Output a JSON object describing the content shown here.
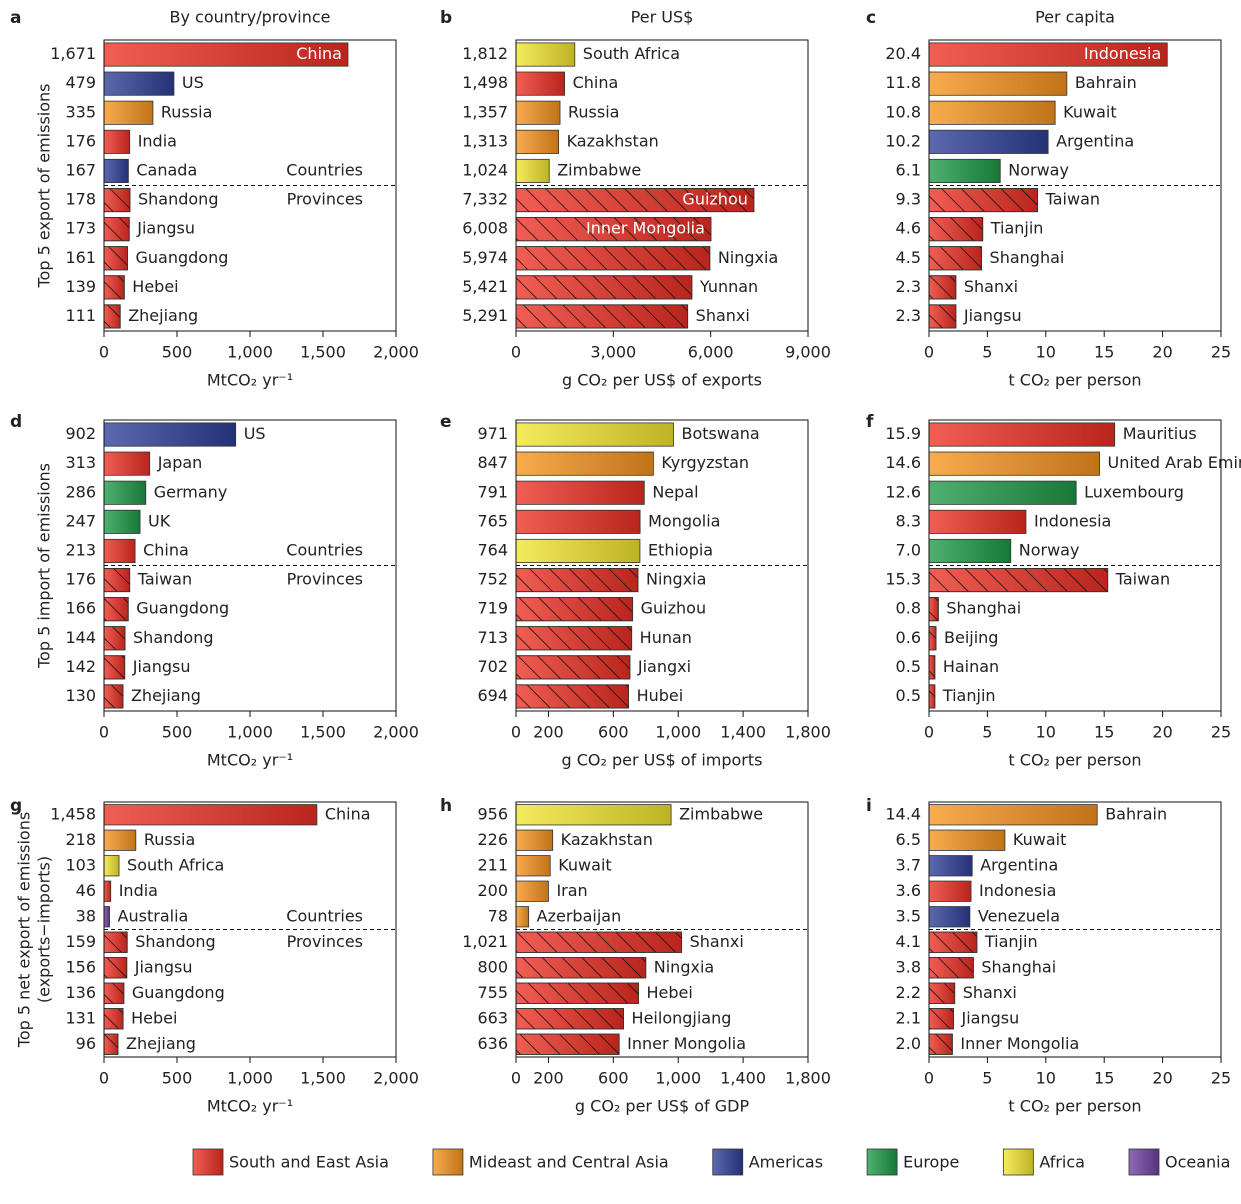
{
  "chart_data": [
    {
      "type": "barh",
      "panel_label": "a",
      "title": "By country/province",
      "ylabel": "Top 5 export of emissions",
      "xlabel": "MtCO₂ yr⁻¹",
      "categories": [
        "China",
        "US",
        "Russia",
        "India",
        "Canada",
        "Shandong",
        "Jiangsu",
        "Guangdong",
        "Hebei",
        "Zhejiang"
      ],
      "values": [
        1671,
        479,
        335,
        176,
        167,
        178,
        173,
        161,
        139,
        111
      ],
      "value_labels": [
        "1,671",
        "479",
        "335",
        "176",
        "167",
        "178",
        "173",
        "161",
        "139",
        "111"
      ],
      "colors": [
        "#ed3024",
        "#2e3f98",
        "#f7941d",
        "#ed3024",
        "#2e3f98",
        "#ed3024",
        "#ed3024",
        "#ed3024",
        "#ed3024",
        "#ed3024"
      ],
      "hatch": [
        false,
        false,
        false,
        false,
        false,
        true,
        true,
        true,
        true,
        true
      ],
      "group_labels": [
        "Countries",
        "Provinces"
      ],
      "xlim": [
        0,
        2000
      ],
      "xticks": [
        0,
        500,
        {
          "value": 1000,
          "label": "1,000"
        },
        {
          "value": 1500,
          "label": "1,500"
        },
        {
          "value": 2000,
          "label": "2,000"
        }
      ]
    },
    {
      "type": "barh",
      "panel_label": "b",
      "title": "Per US$",
      "xlabel": "g CO₂ per US$ of exports",
      "categories": [
        "South Africa",
        "China",
        "Russia",
        "Kazakhstan",
        "Zimbabwe",
        "Guizhou",
        "Inner Mongolia",
        "Ningxia",
        "Yunnan",
        "Shanxi"
      ],
      "values": [
        1812,
        1498,
        1357,
        1313,
        1024,
        7332,
        6008,
        5974,
        5421,
        5291
      ],
      "value_labels": [
        "1,812",
        "1,498",
        "1,357",
        "1,313",
        "1,024",
        "7,332",
        "6,008",
        "5,974",
        "5,421",
        "5,291"
      ],
      "colors": [
        "#f2e530",
        "#ed3024",
        "#f7941d",
        "#f7941d",
        "#f2e530",
        "#ed3024",
        "#ed3024",
        "#ed3024",
        "#ed3024",
        "#ed3024"
      ],
      "hatch": [
        false,
        false,
        false,
        false,
        false,
        true,
        true,
        true,
        true,
        true
      ],
      "xlim": [
        0,
        9000
      ],
      "xticks": [
        0,
        {
          "value": 3000,
          "label": "3,000"
        },
        {
          "value": 6000,
          "label": "6,000"
        },
        {
          "value": 9000,
          "label": "9,000"
        }
      ]
    },
    {
      "type": "barh",
      "panel_label": "c",
      "title": "Per capita",
      "xlabel": "t CO₂ per person",
      "categories": [
        "Indonesia",
        "Bahrain",
        "Kuwait",
        "Argentina",
        "Norway",
        "Taiwan",
        "Tianjin",
        "Shanghai",
        "Shanxi",
        "Jiangsu"
      ],
      "values": [
        20.4,
        11.8,
        10.8,
        10.2,
        6.1,
        9.3,
        4.6,
        4.5,
        2.3,
        2.3
      ],
      "value_labels": [
        "20.4",
        "11.8",
        "10.8",
        "10.2",
        "6.1",
        "9.3",
        "4.6",
        "4.5",
        "2.3",
        "2.3"
      ],
      "colors": [
        "#ed3024",
        "#f7941d",
        "#f7941d",
        "#2e3f98",
        "#1e9a48",
        "#ed3024",
        "#ed3024",
        "#ed3024",
        "#ed3024",
        "#ed3024"
      ],
      "hatch": [
        false,
        false,
        false,
        false,
        false,
        true,
        true,
        true,
        true,
        true
      ],
      "xlim": [
        0,
        25
      ],
      "xticks": [
        0,
        5,
        10,
        15,
        20,
        25
      ]
    },
    {
      "type": "barh",
      "panel_label": "d",
      "ylabel": "Top 5 import of emissions",
      "xlabel": "MtCO₂ yr⁻¹",
      "categories": [
        "US",
        "Japan",
        "Germany",
        "UK",
        "China",
        "Taiwan",
        "Guangdong",
        "Shandong",
        "Jiangsu",
        "Zhejiang"
      ],
      "values": [
        902,
        313,
        286,
        247,
        213,
        176,
        166,
        144,
        142,
        130
      ],
      "value_labels": [
        "902",
        "313",
        "286",
        "247",
        "213",
        "176",
        "166",
        "144",
        "142",
        "130"
      ],
      "colors": [
        "#2e3f98",
        "#ed3024",
        "#1e9a48",
        "#1e9a48",
        "#ed3024",
        "#ed3024",
        "#ed3024",
        "#ed3024",
        "#ed3024",
        "#ed3024"
      ],
      "hatch": [
        false,
        false,
        false,
        false,
        false,
        true,
        true,
        true,
        true,
        true
      ],
      "group_labels": [
        "Countries",
        "Provinces"
      ],
      "xlim": [
        0,
        2000
      ],
      "xticks": [
        0,
        500,
        {
          "value": 1000,
          "label": "1,000"
        },
        {
          "value": 1500,
          "label": "1,500"
        },
        {
          "value": 2000,
          "label": "2,000"
        }
      ]
    },
    {
      "type": "barh",
      "panel_label": "e",
      "xlabel": "g CO₂ per US$ of imports",
      "categories": [
        "Botswana",
        "Kyrgyzstan",
        "Nepal",
        "Mongolia",
        "Ethiopia",
        "Ningxia",
        "Guizhou",
        "Hunan",
        "Jiangxi",
        "Hubei"
      ],
      "values": [
        971,
        847,
        791,
        765,
        764,
        752,
        719,
        713,
        702,
        694
      ],
      "value_labels": [
        "971",
        "847",
        "791",
        "765",
        "764",
        "752",
        "719",
        "713",
        "702",
        "694"
      ],
      "colors": [
        "#f2e530",
        "#f7941d",
        "#ed3024",
        "#ed3024",
        "#f2e530",
        "#ed3024",
        "#ed3024",
        "#ed3024",
        "#ed3024",
        "#ed3024"
      ],
      "hatch": [
        false,
        false,
        false,
        false,
        false,
        true,
        true,
        true,
        true,
        true
      ],
      "xlim": [
        0,
        1800
      ],
      "xticks": [
        0,
        200,
        600,
        {
          "value": 1000,
          "label": "1,000"
        },
        {
          "value": 1400,
          "label": "1,400"
        },
        {
          "value": 1800,
          "label": "1,800"
        }
      ]
    },
    {
      "type": "barh",
      "panel_label": "f",
      "xlabel": "t CO₂ per person",
      "categories": [
        "Mauritius",
        "United Arab Emirates",
        "Luxembourg",
        "Indonesia",
        "Norway",
        "Taiwan",
        "Shanghai",
        "Beijing",
        "Hainan",
        "Tianjin"
      ],
      "values": [
        15.9,
        14.6,
        12.6,
        8.3,
        7.0,
        15.3,
        0.8,
        0.6,
        0.5,
        0.5
      ],
      "value_labels": [
        "15.9",
        "14.6",
        "12.6",
        "8.3",
        "7.0",
        "15.3",
        "0.8",
        "0.6",
        "0.5",
        "0.5"
      ],
      "colors": [
        "#ed3024",
        "#f7941d",
        "#1e9a48",
        "#ed3024",
        "#1e9a48",
        "#ed3024",
        "#ed3024",
        "#ed3024",
        "#ed3024",
        "#ed3024"
      ],
      "hatch": [
        false,
        false,
        false,
        false,
        false,
        true,
        true,
        true,
        true,
        true
      ],
      "xlim": [
        0,
        25
      ],
      "xticks": [
        0,
        5,
        10,
        15,
        20,
        25
      ]
    },
    {
      "type": "barh",
      "panel_label": "g",
      "ylabel": [
        "Top 5 net export of emissions",
        "(exports−imports)"
      ],
      "xlabel": "MtCO₂ yr⁻¹",
      "categories": [
        "China",
        "Russia",
        "South Africa",
        "India",
        "Australia",
        "Shandong",
        "Jiangsu",
        "Guangdong",
        "Hebei",
        "Zhejiang"
      ],
      "values": [
        1458,
        218,
        103,
        46,
        38,
        159,
        156,
        136,
        131,
        96
      ],
      "value_labels": [
        "1,458",
        "218",
        "103",
        "46",
        "38",
        "159",
        "156",
        "136",
        "131",
        "96"
      ],
      "colors": [
        "#ed3024",
        "#f7941d",
        "#f2e530",
        "#ed3024",
        "#7040a0",
        "#ed3024",
        "#ed3024",
        "#ed3024",
        "#ed3024",
        "#ed3024"
      ],
      "hatch": [
        false,
        false,
        false,
        false,
        false,
        true,
        true,
        true,
        true,
        true
      ],
      "group_labels": [
        "Countries",
        "Provinces"
      ],
      "xlim": [
        0,
        2000
      ],
      "xticks": [
        0,
        500,
        {
          "value": 1000,
          "label": "1,000"
        },
        {
          "value": 1500,
          "label": "1,500"
        },
        {
          "value": 2000,
          "label": "2,000"
        }
      ]
    },
    {
      "type": "barh",
      "panel_label": "h",
      "xlabel": "g CO₂ per US$ of GDP",
      "categories": [
        "Zimbabwe",
        "Kazakhstan",
        "Kuwait",
        "Iran",
        "Azerbaijan",
        "Shanxi",
        "Ningxia",
        "Hebei",
        "Heilongjiang",
        "Inner Mongolia"
      ],
      "values": [
        956,
        226,
        211,
        200,
        78,
        1021,
        800,
        755,
        663,
        636
      ],
      "value_labels": [
        "956",
        "226",
        "211",
        "200",
        "78",
        "1,021",
        "800",
        "755",
        "663",
        "636"
      ],
      "colors": [
        "#f2e530",
        "#f7941d",
        "#f7941d",
        "#f7941d",
        "#f7941d",
        "#ed3024",
        "#ed3024",
        "#ed3024",
        "#ed3024",
        "#ed3024"
      ],
      "hatch": [
        false,
        false,
        false,
        false,
        false,
        true,
        true,
        true,
        true,
        true
      ],
      "xlim": [
        0,
        1800
      ],
      "xticks": [
        0,
        200,
        600,
        {
          "value": 1000,
          "label": "1,000"
        },
        {
          "value": 1400,
          "label": "1,400"
        },
        {
          "value": 1800,
          "label": "1,800"
        }
      ]
    },
    {
      "type": "barh",
      "panel_label": "i",
      "xlabel": "t CO₂ per person",
      "categories": [
        "Bahrain",
        "Kuwait",
        "Argentina",
        "Indonesia",
        "Venezuela",
        "Tianjin",
        "Shanghai",
        "Shanxi",
        "Jiangsu",
        "Inner Mongolia"
      ],
      "values": [
        14.4,
        6.5,
        3.7,
        3.6,
        3.5,
        4.1,
        3.8,
        2.2,
        2.1,
        2.0
      ],
      "value_labels": [
        "14.4",
        "6.5",
        "3.7",
        "3.6",
        "3.5",
        "4.1",
        "3.8",
        "2.2",
        "2.1",
        "2.0"
      ],
      "colors": [
        "#f7941d",
        "#f7941d",
        "#2e3f98",
        "#ed3024",
        "#2e3f98",
        "#ed3024",
        "#ed3024",
        "#ed3024",
        "#ed3024",
        "#ed3024"
      ],
      "hatch": [
        false,
        false,
        false,
        false,
        false,
        true,
        true,
        true,
        true,
        true
      ],
      "xlim": [
        0,
        25
      ],
      "xticks": [
        0,
        5,
        10,
        15,
        20,
        25
      ]
    }
  ],
  "legend": [
    {
      "name": "South and East Asia",
      "color": "#ed3024"
    },
    {
      "name": "Mideast and Central Asia",
      "color": "#f7941d"
    },
    {
      "name": "Americas",
      "color": "#2e3f98"
    },
    {
      "name": "Europe",
      "color": "#1e9a48"
    },
    {
      "name": "Africa",
      "color": "#f2e530"
    },
    {
      "name": "Oceania",
      "color": "#7040a0"
    }
  ]
}
